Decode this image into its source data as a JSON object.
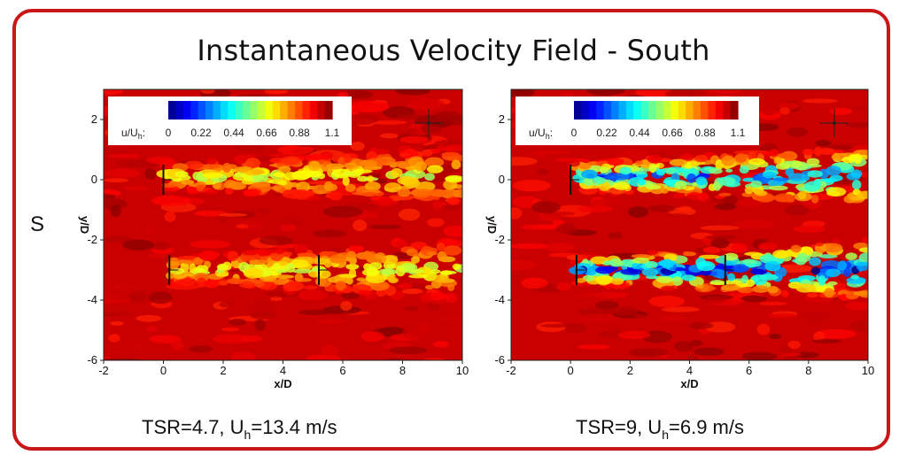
{
  "title": "Instantaneous Velocity Field - South",
  "row_label": "S",
  "colors": {
    "frame": "#c91717"
  },
  "chart_data": [
    {
      "type": "heatmap",
      "caption": {
        "main": "TSR=4.7, U",
        "sub": "h",
        "rest": "=13.4 m/s"
      },
      "xlabel": "x/D",
      "ylabel": "y/D",
      "xlim": [
        -2,
        10
      ],
      "ylim": [
        -6,
        3
      ],
      "xticks": [
        -2,
        0,
        2,
        4,
        6,
        8,
        10
      ],
      "yticks": [
        2,
        0,
        -2,
        -4,
        -6
      ],
      "colorbar": {
        "label": "u/U",
        "label_sub": "h",
        "label_tail": ":",
        "min": 0,
        "max": 1.1,
        "ticks": [
          "0",
          "0.22",
          "0.44",
          "0.66",
          "0.88",
          "1.1"
        ]
      },
      "turbines": [
        {
          "x": 0,
          "y": 0
        },
        {
          "x": 0.2,
          "y": -3
        },
        {
          "x": 5.2,
          "y": -3
        }
      ],
      "wakes": [
        {
          "x0": 0.1,
          "x1": 10,
          "y": 0.1,
          "min_value": 0.6
        },
        {
          "x0": 0.2,
          "x1": 10,
          "y": -3,
          "min_value": 0.6
        }
      ]
    },
    {
      "type": "heatmap",
      "caption": {
        "main": "TSR=9, U",
        "sub": "h",
        "rest": "=6.9 m/s"
      },
      "xlabel": "x/D",
      "ylabel": "y/D",
      "xlim": [
        -2,
        10
      ],
      "ylim": [
        -6,
        3
      ],
      "xticks": [
        -2,
        0,
        2,
        4,
        6,
        8,
        10
      ],
      "yticks": [
        2,
        0,
        -2,
        -4,
        -6
      ],
      "colorbar": {
        "label": "u/U",
        "label_sub": "h",
        "label_tail": ":",
        "min": 0,
        "max": 1.1,
        "ticks": [
          "0",
          "0.22",
          "0.44",
          "0.66",
          "0.88",
          "1.1"
        ]
      },
      "turbines": [
        {
          "x": 0,
          "y": 0
        },
        {
          "x": 0.2,
          "y": -3
        },
        {
          "x": 5.2,
          "y": -3
        }
      ],
      "wakes": [
        {
          "x0": 0.1,
          "x1": 10,
          "y": 0.1,
          "min_value": 0.2
        },
        {
          "x0": 0.2,
          "x1": 10,
          "y": -3,
          "min_value": 0.05
        }
      ]
    }
  ]
}
